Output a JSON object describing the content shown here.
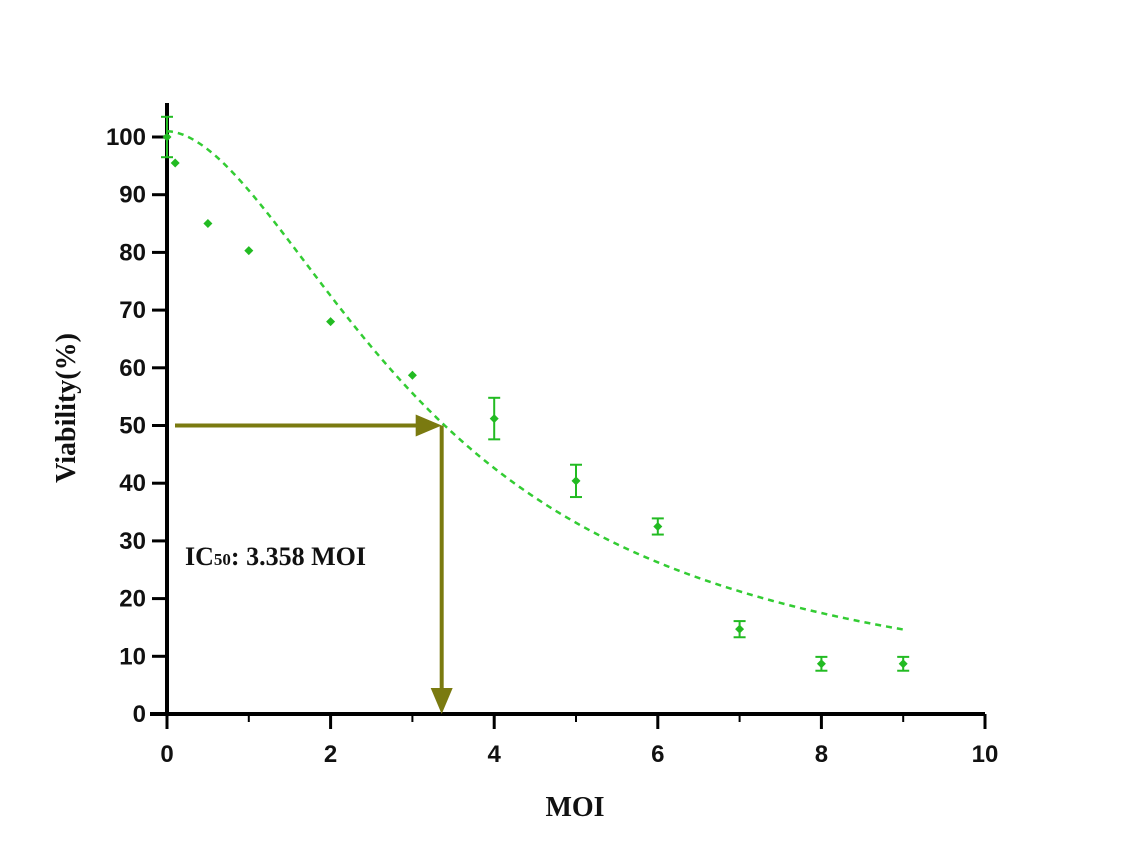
{
  "chart_data": {
    "type": "scatter",
    "title": "",
    "xlabel": "MOI",
    "ylabel": "Viability(%)",
    "xlim": [
      0,
      10
    ],
    "ylim": [
      0,
      100
    ],
    "x_ticks": [
      0,
      2,
      4,
      6,
      8,
      10
    ],
    "y_ticks": [
      0,
      10,
      20,
      30,
      40,
      50,
      60,
      70,
      80,
      90,
      100
    ],
    "grid": false,
    "legend": "none",
    "series": [
      {
        "color": "#22bb22",
        "points": [
          {
            "x": 0,
            "y": 100,
            "err": 3.5
          },
          {
            "x": 0.1,
            "y": 95.5,
            "err": 0
          },
          {
            "x": 0.5,
            "y": 85,
            "err": 0
          },
          {
            "x": 1,
            "y": 80.3,
            "err": 0
          },
          {
            "x": 2,
            "y": 68,
            "err": 0
          },
          {
            "x": 3,
            "y": 58.7,
            "err": 0
          },
          {
            "x": 4,
            "y": 51.2,
            "err": 3.6
          },
          {
            "x": 5,
            "y": 40.4,
            "err": 2.8
          },
          {
            "x": 6,
            "y": 32.5,
            "err": 1.4
          },
          {
            "x": 7,
            "y": 14.7,
            "err": 1.4
          },
          {
            "x": 8,
            "y": 8.7,
            "err": 1.2
          },
          {
            "x": 9,
            "y": 8.7,
            "err": 1.2
          }
        ]
      }
    ],
    "fit_curve": {
      "style": "dashed",
      "color": "#33cc33",
      "x_range": [
        0,
        9
      ],
      "top": 101,
      "ic50": 3.358,
      "hill": 1.8
    },
    "ic50_marker": {
      "x": 3.358,
      "y": 50,
      "color": "#7a7a10"
    },
    "annotation": {
      "prefix": "IC",
      "subscript": "50",
      "suffix": ": 3.358 MOI"
    }
  }
}
